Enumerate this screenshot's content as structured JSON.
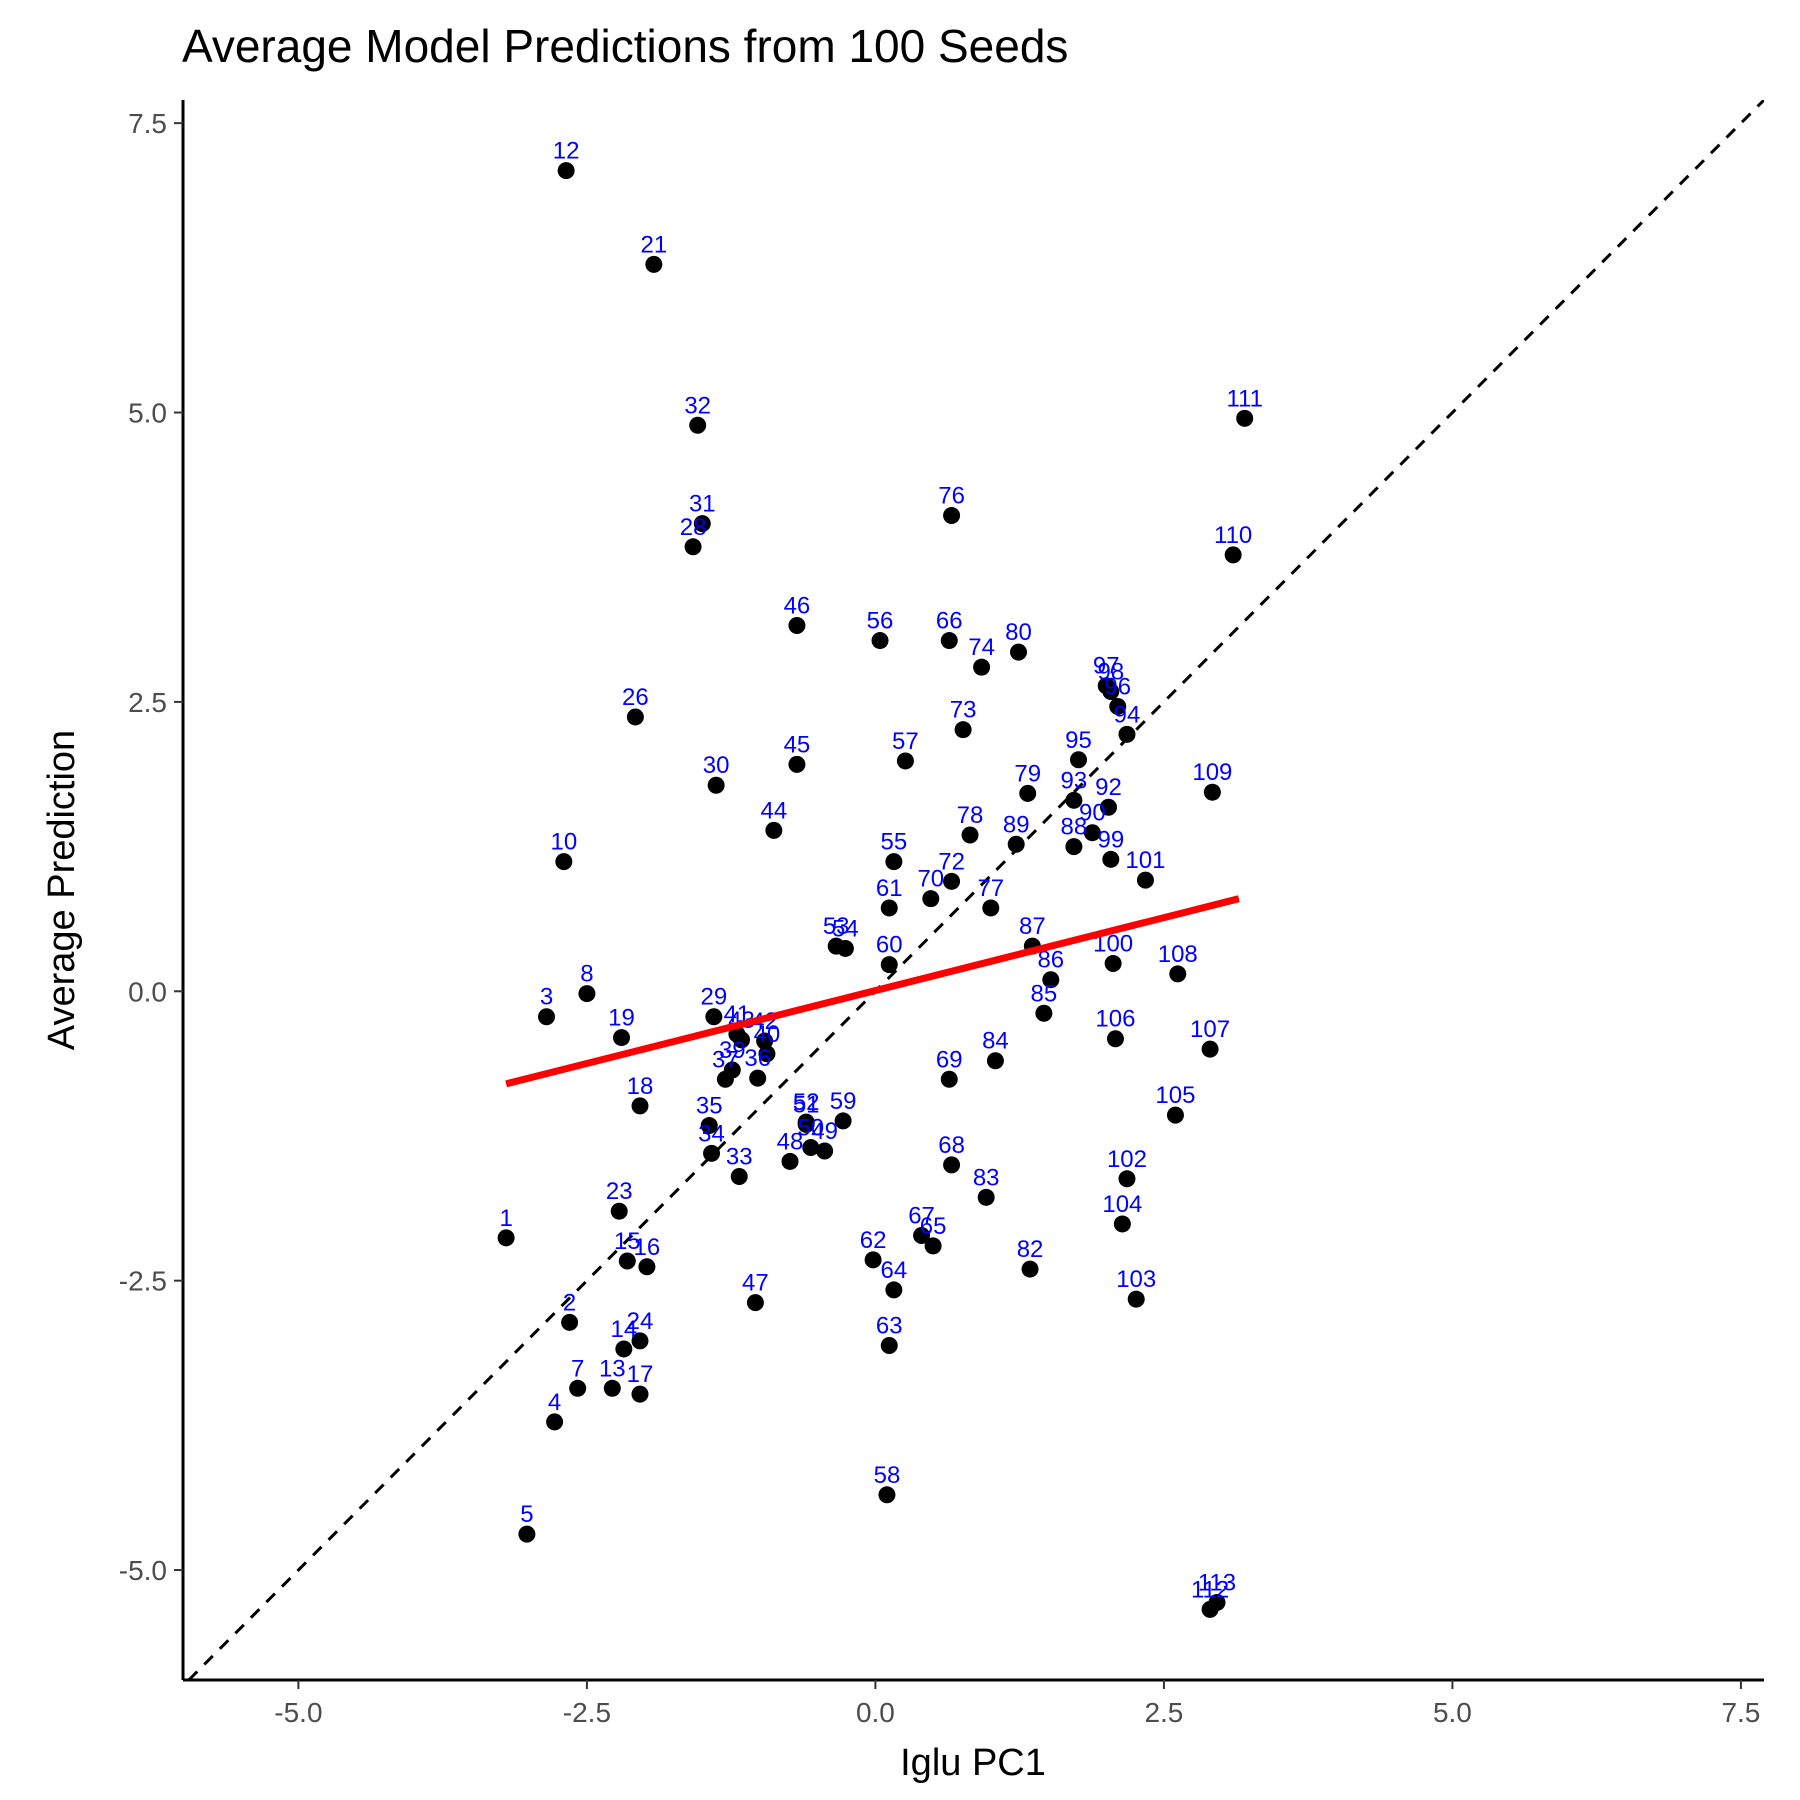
{
  "chart_data": {
    "type": "scatter",
    "title": "Average Model Predictions from 100 Seeds",
    "xlabel": "Iglu PC1",
    "ylabel": "Average Prediction",
    "xlim": [
      -6.0,
      7.7
    ],
    "ylim": [
      -5.95,
      7.7
    ],
    "xticks": [
      {
        "value": -5,
        "label": "-5.0"
      },
      {
        "value": -2.5,
        "label": "-2.5"
      },
      {
        "value": 0,
        "label": "0.0"
      },
      {
        "value": 2.5,
        "label": "2.5"
      },
      {
        "value": 5,
        "label": "5.0"
      },
      {
        "value": 7.5,
        "label": "7.5"
      }
    ],
    "yticks": [
      {
        "value": -5,
        "label": "-5.0"
      },
      {
        "value": -2.5,
        "label": "-2.5"
      },
      {
        "value": 0,
        "label": "0.0"
      },
      {
        "value": 2.5,
        "label": "2.5"
      },
      {
        "value": 5,
        "label": "5.0"
      },
      {
        "value": 7.5,
        "label": "7.5"
      }
    ],
    "grid": false,
    "reference_line": {
      "style": "dashed",
      "color": "#000000",
      "slope": 1,
      "intercept": 0
    },
    "fit_line": {
      "color": "#ff0000",
      "x": [
        -3.2,
        3.15
      ],
      "y": [
        -0.8,
        0.8
      ]
    },
    "point_color": "#000000",
    "label_color": "#0000ff",
    "points": [
      {
        "label": "1",
        "x": -3.2,
        "y": -2.13
      },
      {
        "label": "2",
        "x": -2.65,
        "y": -2.86
      },
      {
        "label": "3",
        "x": -2.85,
        "y": -0.22
      },
      {
        "label": "4",
        "x": -2.78,
        "y": -3.72
      },
      {
        "label": "5",
        "x": -3.02,
        "y": -4.69
      },
      {
        "label": "7",
        "x": -2.58,
        "y": -3.43
      },
      {
        "label": "8",
        "x": -2.5,
        "y": -0.02
      },
      {
        "label": "10",
        "x": -2.7,
        "y": 1.12
      },
      {
        "label": "12",
        "x": -2.68,
        "y": 7.09
      },
      {
        "label": "13",
        "x": -2.28,
        "y": -3.43
      },
      {
        "label": "14",
        "x": -2.18,
        "y": -3.09
      },
      {
        "label": "15",
        "x": -2.15,
        "y": -2.33
      },
      {
        "label": "16",
        "x": -1.98,
        "y": -2.38
      },
      {
        "label": "17",
        "x": -2.04,
        "y": -3.48
      },
      {
        "label": "18",
        "x": -2.04,
        "y": -0.99
      },
      {
        "label": "19",
        "x": -2.2,
        "y": -0.4
      },
      {
        "label": "21",
        "x": -1.92,
        "y": 6.28
      },
      {
        "label": "23",
        "x": -2.22,
        "y": -1.9
      },
      {
        "label": "24",
        "x": -2.04,
        "y": -3.02
      },
      {
        "label": "26",
        "x": -2.08,
        "y": 2.37
      },
      {
        "label": "28",
        "x": -1.58,
        "y": 3.84
      },
      {
        "label": "29",
        "x": -1.4,
        "y": -0.22
      },
      {
        "label": "30",
        "x": -1.38,
        "y": 1.78
      },
      {
        "label": "31",
        "x": -1.5,
        "y": 4.04
      },
      {
        "label": "32",
        "x": -1.54,
        "y": 4.89
      },
      {
        "label": "33",
        "x": -1.18,
        "y": -1.6
      },
      {
        "label": "34",
        "x": -1.42,
        "y": -1.4
      },
      {
        "label": "35",
        "x": -1.44,
        "y": -1.16
      },
      {
        "label": "36",
        "x": -1.02,
        "y": -0.75
      },
      {
        "label": "37",
        "x": -1.3,
        "y": -0.76
      },
      {
        "label": "39",
        "x": -1.24,
        "y": -0.68
      },
      {
        "label": "40",
        "x": -0.94,
        "y": -0.54
      },
      {
        "label": "41",
        "x": -1.2,
        "y": -0.37
      },
      {
        "label": "42",
        "x": -0.96,
        "y": -0.43
      },
      {
        "label": "43",
        "x": -1.16,
        "y": -0.42
      },
      {
        "label": "44",
        "x": -0.88,
        "y": 1.39
      },
      {
        "label": "45",
        "x": -0.68,
        "y": 1.96
      },
      {
        "label": "46",
        "x": -0.68,
        "y": 3.16
      },
      {
        "label": "47",
        "x": -1.04,
        "y": -2.69
      },
      {
        "label": "48",
        "x": -0.74,
        "y": -1.47
      },
      {
        "label": "49",
        "x": -0.44,
        "y": -1.38
      },
      {
        "label": "50",
        "x": -0.56,
        "y": -1.35
      },
      {
        "label": "51",
        "x": -0.6,
        "y": -1.15
      },
      {
        "label": "52",
        "x": -0.6,
        "y": -1.13
      },
      {
        "label": "53",
        "x": -0.34,
        "y": 0.39
      },
      {
        "label": "54",
        "x": -0.26,
        "y": 0.37
      },
      {
        "label": "55",
        "x": 0.16,
        "y": 1.12
      },
      {
        "label": "56",
        "x": 0.04,
        "y": 3.03
      },
      {
        "label": "57",
        "x": 0.26,
        "y": 1.99
      },
      {
        "label": "58",
        "x": 0.1,
        "y": -4.35
      },
      {
        "label": "59",
        "x": -0.28,
        "y": -1.12
      },
      {
        "label": "60",
        "x": 0.12,
        "y": 0.23
      },
      {
        "label": "61",
        "x": 0.12,
        "y": 0.72
      },
      {
        "label": "62",
        "x": -0.02,
        "y": -2.32
      },
      {
        "label": "63",
        "x": 0.12,
        "y": -3.06
      },
      {
        "label": "64",
        "x": 0.16,
        "y": -2.58
      },
      {
        "label": "65",
        "x": 0.5,
        "y": -2.2
      },
      {
        "label": "66",
        "x": 0.64,
        "y": 3.03
      },
      {
        "label": "67",
        "x": 0.4,
        "y": -2.11
      },
      {
        "label": "68",
        "x": 0.66,
        "y": -1.5
      },
      {
        "label": "69",
        "x": 0.64,
        "y": -0.76
      },
      {
        "label": "70",
        "x": 0.48,
        "y": 0.8
      },
      {
        "label": "72",
        "x": 0.66,
        "y": 0.95
      },
      {
        "label": "73",
        "x": 0.76,
        "y": 2.26
      },
      {
        "label": "74",
        "x": 0.92,
        "y": 2.8
      },
      {
        "label": "76",
        "x": 0.66,
        "y": 4.11
      },
      {
        "label": "77",
        "x": 1.0,
        "y": 0.72
      },
      {
        "label": "78",
        "x": 0.82,
        "y": 1.35
      },
      {
        "label": "79",
        "x": 1.32,
        "y": 1.71
      },
      {
        "label": "80",
        "x": 1.24,
        "y": 2.93
      },
      {
        "label": "82",
        "x": 1.34,
        "y": -2.4
      },
      {
        "label": "83",
        "x": 0.96,
        "y": -1.78
      },
      {
        "label": "84",
        "x": 1.04,
        "y": -0.6
      },
      {
        "label": "85",
        "x": 1.46,
        "y": -0.19
      },
      {
        "label": "86",
        "x": 1.52,
        "y": 0.1
      },
      {
        "label": "87",
        "x": 1.36,
        "y": 0.39
      },
      {
        "label": "88",
        "x": 1.72,
        "y": 1.25
      },
      {
        "label": "89",
        "x": 1.22,
        "y": 1.27
      },
      {
        "label": "90",
        "x": 1.88,
        "y": 1.37
      },
      {
        "label": "92",
        "x": 2.02,
        "y": 1.59
      },
      {
        "label": "93",
        "x": 1.72,
        "y": 1.65
      },
      {
        "label": "94",
        "x": 2.18,
        "y": 2.22
      },
      {
        "label": "95",
        "x": 1.76,
        "y": 2.0
      },
      {
        "label": "96",
        "x": 2.1,
        "y": 2.46
      },
      {
        "label": "97",
        "x": 2.0,
        "y": 2.64
      },
      {
        "label": "98",
        "x": 2.04,
        "y": 2.59
      },
      {
        "label": "99",
        "x": 2.04,
        "y": 1.14
      },
      {
        "label": "100",
        "x": 2.06,
        "y": 0.24
      },
      {
        "label": "101",
        "x": 2.34,
        "y": 0.96
      },
      {
        "label": "102",
        "x": 2.18,
        "y": -1.62
      },
      {
        "label": "103",
        "x": 2.26,
        "y": -2.66
      },
      {
        "label": "104",
        "x": 2.14,
        "y": -2.01
      },
      {
        "label": "105",
        "x": 2.6,
        "y": -1.07
      },
      {
        "label": "106",
        "x": 2.08,
        "y": -0.41
      },
      {
        "label": "107",
        "x": 2.9,
        "y": -0.5
      },
      {
        "label": "108",
        "x": 2.62,
        "y": 0.15
      },
      {
        "label": "109",
        "x": 2.92,
        "y": 1.72
      },
      {
        "label": "110",
        "x": 3.1,
        "y": 3.77
      },
      {
        "label": "111",
        "x": 3.2,
        "y": 4.95
      },
      {
        "label": "112",
        "x": 2.9,
        "y": -5.34
      },
      {
        "label": "113",
        "x": 2.96,
        "y": -5.28
      }
    ]
  }
}
